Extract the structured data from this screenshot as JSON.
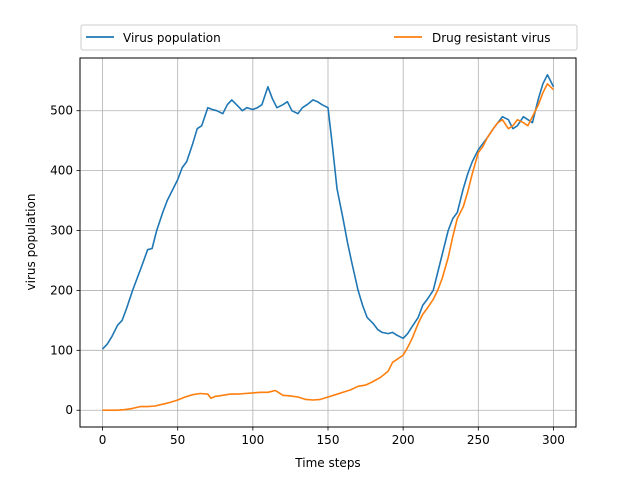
{
  "chart_data": {
    "type": "line",
    "xlabel": "Time steps",
    "ylabel": "virus population",
    "xlim": [
      -15,
      315
    ],
    "ylim": [
      -28,
      588
    ],
    "xticks": [
      0,
      50,
      100,
      150,
      200,
      250,
      300
    ],
    "yticks": [
      0,
      100,
      200,
      300,
      400,
      500
    ],
    "grid": true,
    "legend_position": "top",
    "series": [
      {
        "name": "Virus population",
        "color": "#1f77b4",
        "x": [
          0,
          3,
          6,
          10,
          13,
          16,
          20,
          23,
          26,
          30,
          33,
          36,
          40,
          43,
          46,
          50,
          53,
          56,
          60,
          63,
          66,
          70,
          73,
          76,
          80,
          83,
          86,
          90,
          93,
          96,
          100,
          103,
          106,
          110,
          113,
          116,
          120,
          123,
          126,
          130,
          133,
          136,
          140,
          143,
          146,
          150,
          153,
          156,
          160,
          163,
          166,
          170,
          173,
          176,
          180,
          183,
          186,
          190,
          193,
          196,
          200,
          203,
          206,
          210,
          213,
          216,
          220,
          223,
          226,
          230,
          233,
          236,
          240,
          243,
          246,
          250,
          253,
          256,
          260,
          263,
          266,
          270,
          273,
          276,
          280,
          283,
          286,
          290,
          293,
          296,
          300
        ],
        "y": [
          102,
          110,
          122,
          142,
          150,
          170,
          200,
          220,
          240,
          268,
          270,
          300,
          330,
          350,
          365,
          385,
          405,
          415,
          445,
          470,
          475,
          505,
          502,
          500,
          495,
          510,
          518,
          508,
          500,
          505,
          502,
          505,
          510,
          540,
          520,
          505,
          510,
          515,
          500,
          495,
          505,
          510,
          518,
          515,
          510,
          505,
          440,
          370,
          320,
          280,
          245,
          200,
          175,
          155,
          145,
          135,
          130,
          128,
          130,
          125,
          120,
          128,
          140,
          155,
          175,
          185,
          200,
          230,
          260,
          300,
          320,
          330,
          370,
          395,
          415,
          435,
          445,
          455,
          470,
          480,
          490,
          485,
          470,
          475,
          490,
          485,
          480,
          520,
          545,
          560,
          540
        ]
      },
      {
        "name": "Drug resistant virus",
        "color": "#ff7f0e",
        "x": [
          0,
          5,
          10,
          15,
          20,
          25,
          30,
          35,
          40,
          45,
          50,
          55,
          60,
          65,
          70,
          72,
          75,
          80,
          85,
          90,
          95,
          100,
          105,
          110,
          115,
          120,
          125,
          130,
          135,
          140,
          145,
          150,
          155,
          160,
          165,
          170,
          175,
          180,
          185,
          190,
          193,
          196,
          200,
          203,
          206,
          210,
          213,
          216,
          220,
          223,
          226,
          230,
          233,
          236,
          240,
          243,
          246,
          250,
          253,
          256,
          260,
          263,
          266,
          270,
          273,
          276,
          280,
          283,
          286,
          290,
          293,
          296,
          300
        ],
        "y": [
          0,
          0,
          0,
          1,
          3,
          6,
          6,
          7,
          10,
          13,
          17,
          22,
          26,
          28,
          27,
          20,
          23,
          25,
          27,
          27,
          28,
          29,
          30,
          30,
          33,
          25,
          24,
          22,
          18,
          17,
          18,
          22,
          26,
          30,
          34,
          40,
          42,
          48,
          55,
          65,
          80,
          85,
          92,
          105,
          120,
          145,
          160,
          170,
          185,
          200,
          220,
          255,
          290,
          320,
          340,
          365,
          395,
          430,
          440,
          455,
          470,
          480,
          485,
          470,
          475,
          485,
          480,
          475,
          490,
          510,
          530,
          545,
          535
        ]
      }
    ]
  }
}
